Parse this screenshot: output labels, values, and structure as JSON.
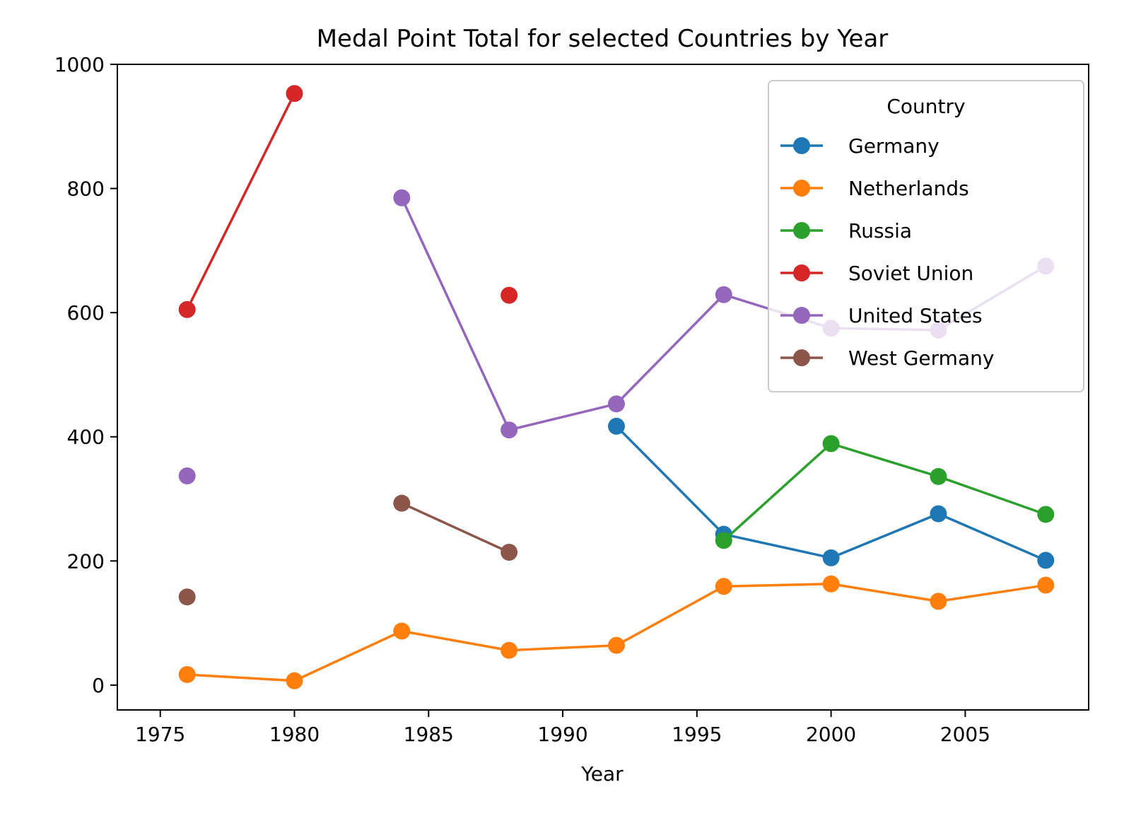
{
  "chart_data": {
    "type": "line",
    "title": "Medal Point Total for selected Countries by Year",
    "xlabel": "Year",
    "ylabel": "",
    "xlim": [
      1973.4,
      2009.6
    ],
    "ylim": [
      -40,
      1000
    ],
    "xticks": [
      1975,
      1980,
      1985,
      1990,
      1995,
      2000,
      2005
    ],
    "yticks": [
      0,
      200,
      400,
      600,
      800,
      1000
    ],
    "legend": {
      "title": "Country",
      "position": "upper right"
    },
    "series": [
      {
        "name": "Germany",
        "color": "#1f77b4",
        "points": [
          [
            1992,
            417
          ],
          [
            1996,
            243
          ],
          [
            2000,
            205
          ],
          [
            2004,
            276
          ],
          [
            2008,
            201
          ]
        ]
      },
      {
        "name": "Netherlands",
        "color": "#ff7f0e",
        "points": [
          [
            1976,
            17
          ],
          [
            1980,
            7
          ],
          [
            1984,
            87
          ],
          [
            1988,
            56
          ],
          [
            1992,
            64
          ],
          [
            1996,
            159
          ],
          [
            2000,
            163
          ],
          [
            2004,
            135
          ],
          [
            2008,
            161
          ]
        ]
      },
      {
        "name": "Russia",
        "color": "#2ca02c",
        "points": [
          [
            1996,
            233
          ],
          [
            2000,
            389
          ],
          [
            2004,
            336
          ],
          [
            2008,
            275
          ]
        ]
      },
      {
        "name": "Soviet Union",
        "color": "#d62728",
        "points": [
          [
            1976,
            605
          ],
          [
            1980,
            953
          ],
          [
            1984,
            null
          ],
          [
            1988,
            628
          ]
        ]
      },
      {
        "name": "United States",
        "color": "#9467bd",
        "points": [
          [
            1976,
            337
          ],
          [
            1980,
            null
          ],
          [
            1984,
            785
          ],
          [
            1988,
            411
          ],
          [
            1992,
            453
          ],
          [
            1996,
            629
          ],
          [
            2000,
            575
          ],
          [
            2004,
            572
          ],
          [
            2008,
            675
          ]
        ]
      },
      {
        "name": "West Germany",
        "color": "#8c564b",
        "points": [
          [
            1976,
            142
          ],
          [
            1980,
            null
          ],
          [
            1984,
            293
          ],
          [
            1988,
            214
          ]
        ]
      }
    ]
  }
}
